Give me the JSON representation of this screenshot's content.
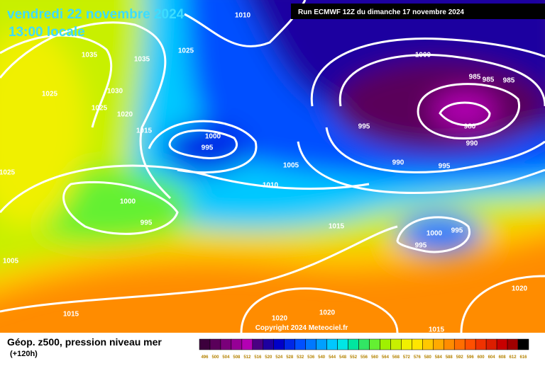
{
  "header": {
    "date": "vendredi 22 novembre 2024",
    "time": "13:00 locale",
    "run": "Run ECMWF 12Z du dimanche 17 novembre 2024"
  },
  "isobar_labels": [
    "1010",
    "1035",
    "1035",
    "1025",
    "1025",
    "1030",
    "1025",
    "1020",
    "1015",
    "1000",
    "995",
    "1025",
    "1005",
    "1010",
    "1000",
    "995",
    "1015",
    "1005",
    "1015",
    "1020",
    "1020",
    "1000",
    "985",
    "985",
    "985",
    "980",
    "990",
    "995",
    "990",
    "995",
    "1000",
    "995",
    "995",
    "1020",
    "1015"
  ],
  "footer": {
    "title": "Géop. z500, pression niveau mer",
    "lead": "(+120h)",
    "copyright": "Copyright 2024 Meteociel.fr"
  },
  "colorbar": {
    "labels": [
      496,
      500,
      504,
      508,
      512,
      516,
      520,
      524,
      528,
      532,
      536,
      540,
      544,
      548,
      552,
      556,
      560,
      564,
      568,
      572,
      576,
      580,
      584,
      588,
      592,
      596,
      600,
      604,
      608,
      612,
      616
    ],
    "colors": [
      "#3c003c",
      "#5a005a",
      "#7a007a",
      "#960096",
      "#b400b4",
      "#4b0082",
      "#1e00a0",
      "#0000c8",
      "#0028e6",
      "#0050ff",
      "#0078ff",
      "#00a0ff",
      "#00c8ff",
      "#00e6e6",
      "#00e6a0",
      "#32e664",
      "#64f032",
      "#a0f000",
      "#c8f000",
      "#f0f000",
      "#ffe600",
      "#ffc800",
      "#ffaa00",
      "#ff8c00",
      "#ff6e00",
      "#ff5000",
      "#f03200",
      "#dc1e00",
      "#c80000",
      "#a00000",
      "#000000"
    ]
  }
}
